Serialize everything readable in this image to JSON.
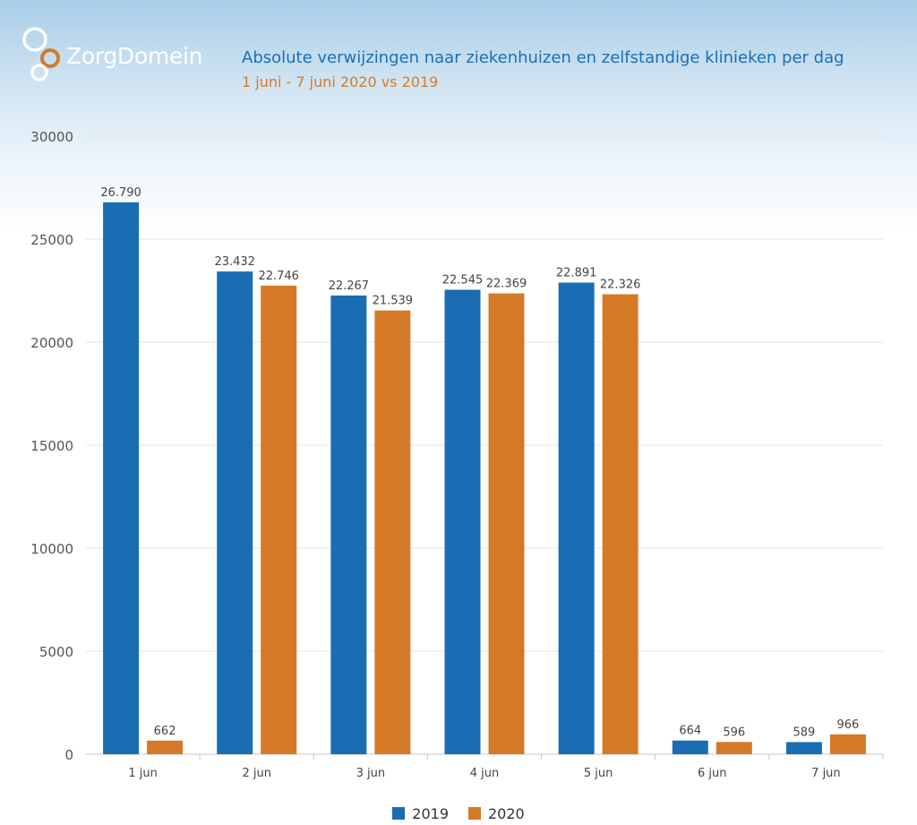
{
  "header": {
    "logo_text": "ZorgDomein",
    "title": "Absolute verwijzingen naar ziekenhuizen en zelfstandige klinieken per dag",
    "subtitle": "1 juni - 7 juni 2020 vs 2019"
  },
  "colors": {
    "series_2019": "#1a6db3",
    "series_2020": "#d47a27",
    "title": "#1a6fb5",
    "subtitle": "#d87b27",
    "logo_accent": "#d47a27"
  },
  "chart_data": {
    "type": "bar",
    "categories": [
      "1 jun",
      "2 jun",
      "3 jun",
      "4 jun",
      "5 jun",
      "6 jun",
      "7 jun"
    ],
    "series": [
      {
        "name": "2019",
        "values": [
          26790,
          23432,
          22267,
          22545,
          22891,
          664,
          589
        ],
        "labels": [
          "26.790",
          "23.432",
          "22.267",
          "22.545",
          "22.891",
          "664",
          "589"
        ]
      },
      {
        "name": "2020",
        "values": [
          662,
          22746,
          21539,
          22369,
          22326,
          596,
          966
        ],
        "labels": [
          "662",
          "22.746",
          "21.539",
          "22.369",
          "22.326",
          "596",
          "966"
        ]
      }
    ],
    "yticks": [
      0,
      5000,
      10000,
      15000,
      20000,
      25000,
      30000
    ],
    "ylim": [
      0,
      30000
    ],
    "grid": true,
    "legend_position": "bottom-center"
  }
}
